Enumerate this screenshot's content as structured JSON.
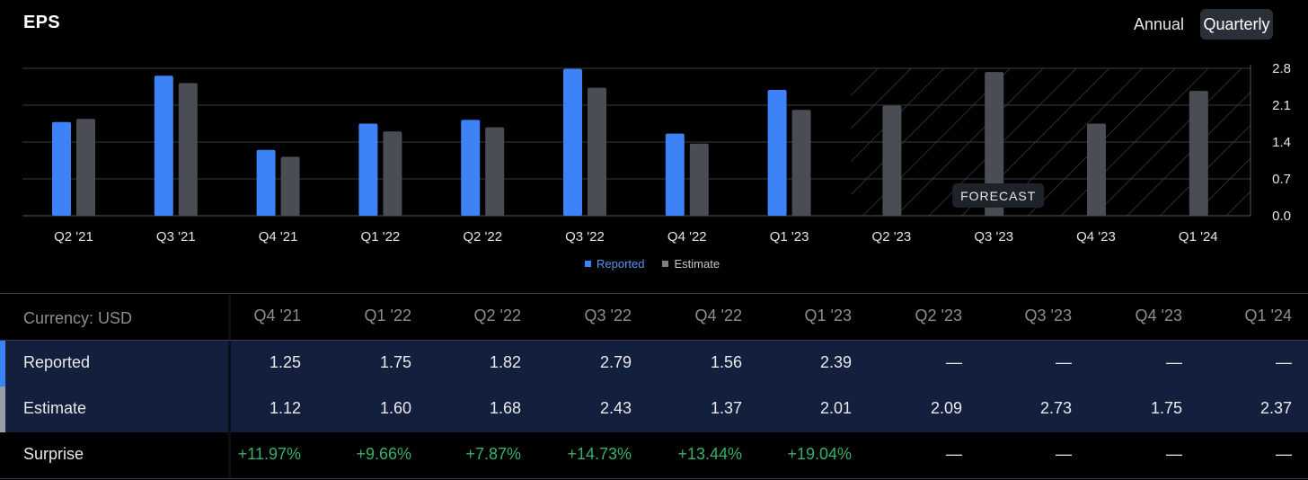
{
  "header": {
    "title": "EPS",
    "annual_label": "Annual",
    "quarterly_label": "Quarterly"
  },
  "colors": {
    "reported": "#3d82f6",
    "estimate": "#4a4d54",
    "positive": "#35b26b"
  },
  "chart_data": {
    "type": "bar",
    "title": "EPS",
    "categories": [
      "Q2 '21",
      "Q3 '21",
      "Q4 '21",
      "Q1 '22",
      "Q2 '22",
      "Q3 '22",
      "Q4 '22",
      "Q1 '23",
      "Q2 '23",
      "Q3 '23",
      "Q4 '23",
      "Q1 '24"
    ],
    "series": [
      {
        "name": "Reported",
        "values": [
          1.78,
          2.66,
          1.25,
          1.75,
          1.82,
          2.79,
          1.56,
          2.39,
          null,
          null,
          null,
          null
        ]
      },
      {
        "name": "Estimate",
        "values": [
          1.84,
          2.52,
          1.12,
          1.6,
          1.68,
          2.43,
          1.37,
          2.01,
          2.09,
          2.73,
          1.75,
          2.37
        ]
      }
    ],
    "yticks": [
      "0.0",
      "0.7",
      "1.4",
      "2.1",
      "2.8"
    ],
    "ylim": [
      0,
      2.8
    ],
    "grid": true,
    "forecast_label": "FORECAST",
    "forecast_start_index": 8,
    "legend": [
      "Reported",
      "Estimate"
    ],
    "legend_position": "bottom-center"
  },
  "table": {
    "currency_label": "Currency: USD",
    "columns": [
      "Q4 '21",
      "Q1 '22",
      "Q2 '22",
      "Q3 '22",
      "Q4 '22",
      "Q1 '23",
      "Q2 '23",
      "Q3 '23",
      "Q4 '23",
      "Q1 '24"
    ],
    "rows": {
      "reported": {
        "label": "Reported",
        "values": [
          "1.25",
          "1.75",
          "1.82",
          "2.79",
          "1.56",
          "2.39",
          "—",
          "—",
          "—",
          "—"
        ]
      },
      "estimate": {
        "label": "Estimate",
        "values": [
          "1.12",
          "1.60",
          "1.68",
          "2.43",
          "1.37",
          "2.01",
          "2.09",
          "2.73",
          "1.75",
          "2.37"
        ]
      },
      "surprise": {
        "label": "Surprise",
        "values": [
          "+11.97%",
          "+9.66%",
          "+7.87%",
          "+14.73%",
          "+13.44%",
          "+19.04%",
          "—",
          "—",
          "—",
          "—"
        ]
      }
    }
  }
}
